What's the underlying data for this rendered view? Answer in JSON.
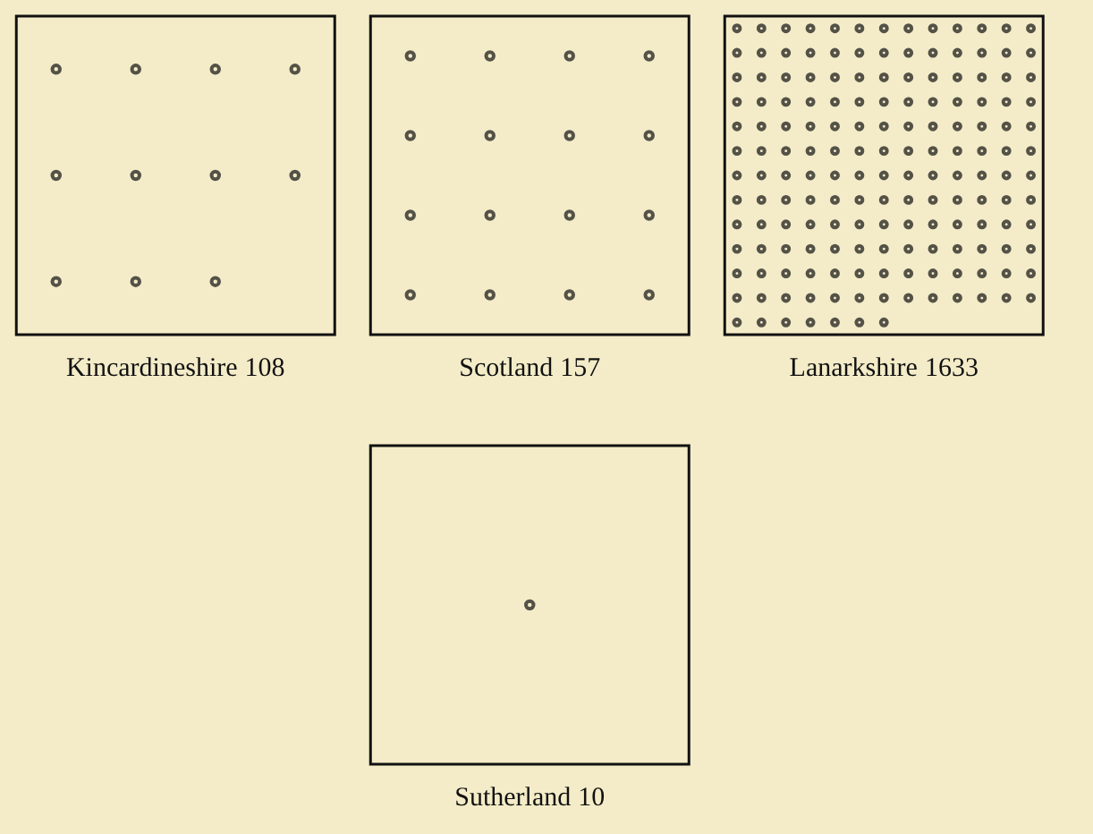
{
  "chart_data": {
    "type": "other",
    "categories": [
      "Kincardineshire",
      "Scotland",
      "Lanarkshire",
      "Sutherland"
    ],
    "values": [
      108,
      157,
      1633,
      10
    ],
    "data_labels": true
  }
}
